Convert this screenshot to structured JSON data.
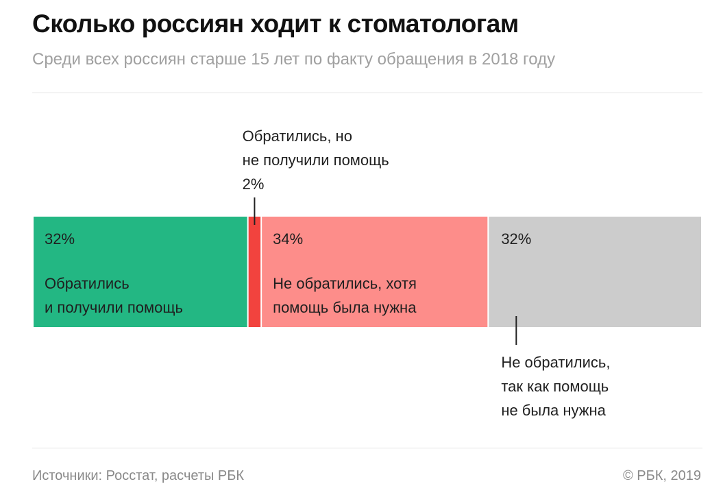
{
  "chart_data": {
    "type": "bar",
    "orientation": "horizontal-stacked",
    "title": "Сколько россиян ходит к стоматологам",
    "subtitle": "Среди всех россиян старше 15 лет по факту обращения в 2018 году",
    "total": 100,
    "segments": [
      {
        "value": 32,
        "value_label": "32%",
        "label_lines": [
          "Обратились",
          "и получили помощь"
        ],
        "label_position": "inside",
        "color": "#23b783"
      },
      {
        "value": 2,
        "value_label": "2%",
        "label_lines": [
          "Обратились, но",
          "не получили помощь"
        ],
        "label_position": "above",
        "color": "#f2433e"
      },
      {
        "value": 34,
        "value_label": "34%",
        "label_lines": [
          "Не обратились, хотя",
          "помощь была нужна"
        ],
        "label_position": "inside",
        "color": "#fd8d8a"
      },
      {
        "value": 32,
        "value_label": "32%",
        "label_lines": [
          "Не обратились,",
          "так как помощь",
          "не была нужна"
        ],
        "label_position": "below",
        "color": "#cccccc"
      }
    ]
  },
  "footer": {
    "source": "Источники: Росстат, расчеты РБК",
    "copyright": "© РБК, 2019"
  }
}
